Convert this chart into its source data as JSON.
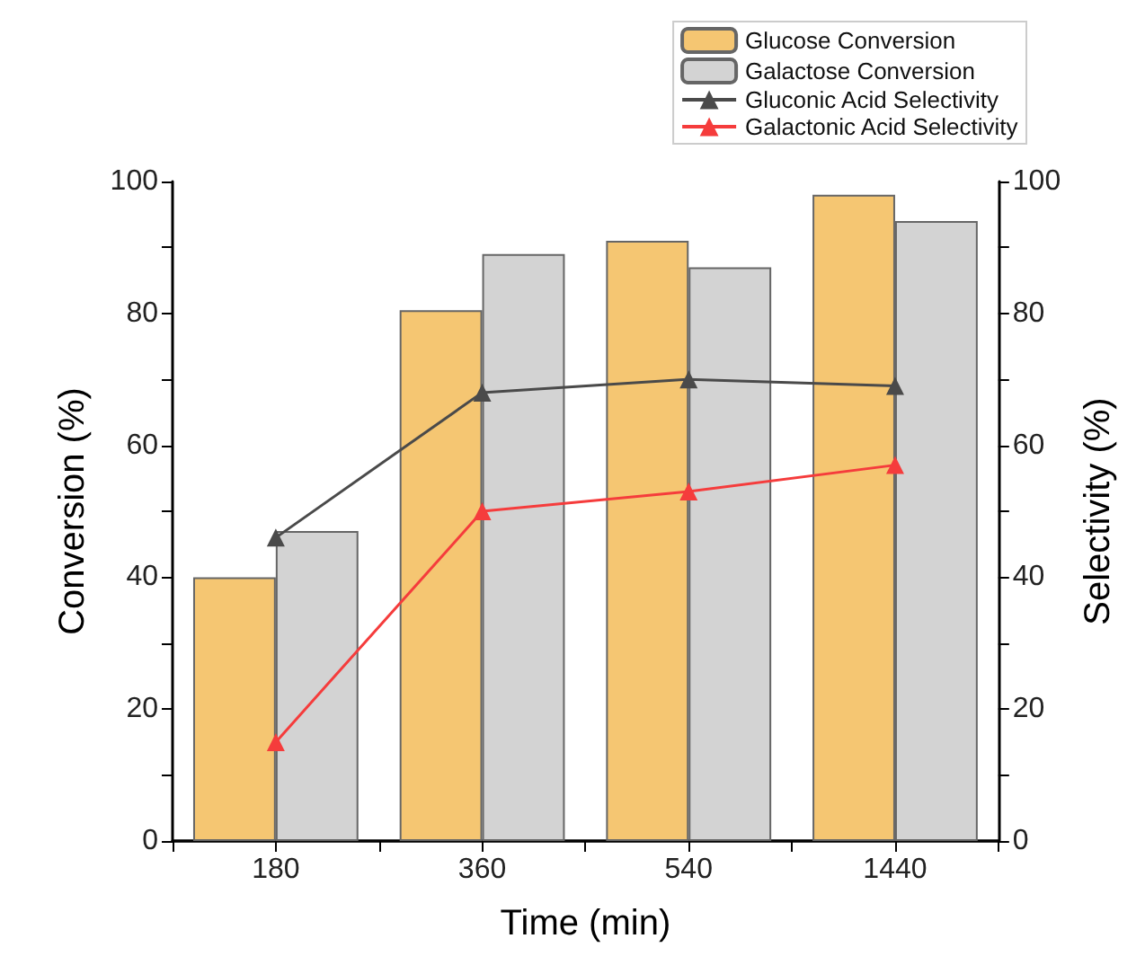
{
  "chart_data": {
    "type": "bar",
    "xlabel": "Time (min)",
    "ylabel": "Conversion (%)",
    "y2label": "Selectivity (%)",
    "categories": [
      "180",
      "360",
      "540",
      "1440"
    ],
    "series": [
      {
        "name": "Glucose Conversion",
        "color": "#f5c672",
        "values": [
          40,
          80.5,
          91,
          98
        ]
      },
      {
        "name": "Galactose Conversion",
        "color": "#d3d3d3",
        "values": [
          47,
          89,
          87,
          94
        ]
      },
      {
        "name": "Gluconic Acid Selectivity",
        "type": "line",
        "axis": "y2",
        "color": "#4a4a4a",
        "values": [
          46,
          68,
          70,
          69
        ]
      },
      {
        "name": "Galactonic Acid Selectivity",
        "type": "line",
        "axis": "y2",
        "color": "#f53c3c",
        "values": [
          15,
          50,
          53,
          57
        ]
      }
    ],
    "ylim": [
      0,
      100
    ],
    "yticks": [
      0,
      {
        "value": 10,
        "label": null
      },
      20,
      {
        "value": 30,
        "label": null
      },
      40,
      {
        "value": 50,
        "label": null
      },
      60,
      {
        "value": 70,
        "label": null
      },
      80,
      {
        "value": 90,
        "label": null
      },
      100
    ],
    "y2lim": [
      0,
      100
    ],
    "y2ticks": [
      0,
      {
        "value": 10,
        "label": null
      },
      20,
      {
        "value": 30,
        "label": null
      },
      40,
      {
        "value": 50,
        "label": null
      },
      60,
      {
        "value": 70,
        "label": null
      },
      80,
      {
        "value": 90,
        "label": null
      },
      100
    ],
    "legend": "top right",
    "marker": "triangle",
    "line_style": "solid",
    "grid": false
  }
}
